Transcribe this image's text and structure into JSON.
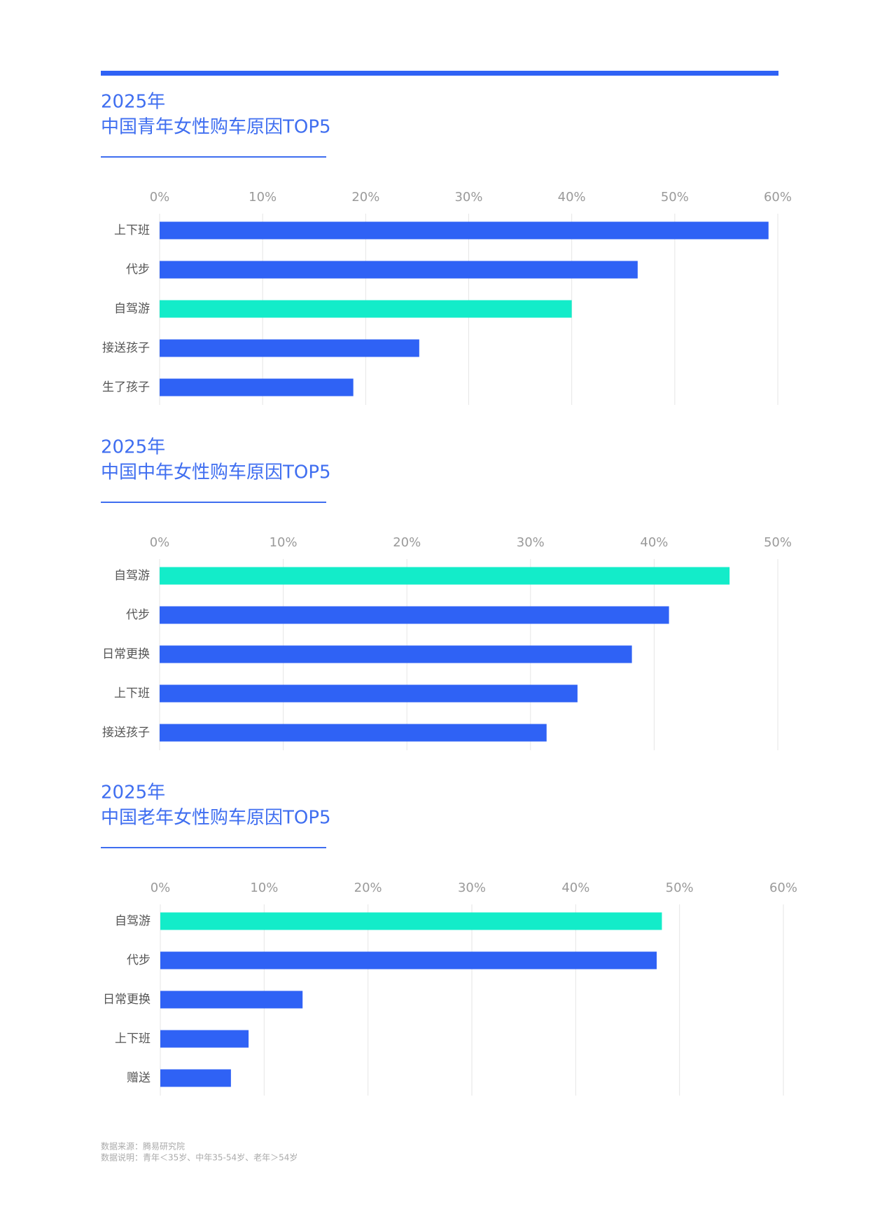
{
  "chart_data": [
    {
      "type": "bar",
      "orientation": "horizontal",
      "title": "2025年",
      "subtitle": "中国青年女性购车原因TOP5",
      "categories": [
        "上下班",
        "代步",
        "自驾游",
        "接送孩子",
        "生了孩子"
      ],
      "values": [
        59.1,
        46.4,
        40.0,
        25.2,
        18.8
      ],
      "colors": [
        "#2f62f5",
        "#2f62f5",
        "#13ecc9",
        "#2f62f5",
        "#2f62f5"
      ],
      "xlim": [
        0,
        60
      ],
      "xticks": [
        {
          "value": 0,
          "label": "0%"
        },
        {
          "value": 10,
          "label": "10%"
        },
        {
          "value": 20,
          "label": "20%"
        },
        {
          "value": 30,
          "label": "30%"
        },
        {
          "value": 40,
          "label": "40%"
        },
        {
          "value": 50,
          "label": "50%"
        },
        {
          "value": 60,
          "label": "60%"
        }
      ],
      "grid": true
    },
    {
      "type": "bar",
      "orientation": "horizontal",
      "title": "2025年",
      "subtitle": "中国中年女性购车原因TOP5",
      "categories": [
        "自驾游",
        "代步",
        "日常更换",
        "上下班",
        "接送孩子"
      ],
      "values": [
        46.1,
        41.2,
        38.2,
        33.8,
        31.3
      ],
      "colors": [
        "#13ecc9",
        "#2f62f5",
        "#2f62f5",
        "#2f62f5",
        "#2f62f5"
      ],
      "xlim": [
        0,
        50
      ],
      "xticks": [
        {
          "value": 0,
          "label": "0%"
        },
        {
          "value": 10,
          "label": "10%"
        },
        {
          "value": 20,
          "label": "20%"
        },
        {
          "value": 30,
          "label": "30%"
        },
        {
          "value": 40,
          "label": "40%"
        },
        {
          "value": 50,
          "label": "50%"
        }
      ],
      "grid": true
    },
    {
      "type": "bar",
      "orientation": "horizontal",
      "title": "2025年",
      "subtitle": "中国老年女性购车原因TOP5",
      "categories": [
        "自驾游",
        "代步",
        "日常更换",
        "上下班",
        "赠送"
      ],
      "values": [
        48.3,
        47.8,
        13.7,
        8.5,
        6.8
      ],
      "colors": [
        "#13ecc9",
        "#2f62f5",
        "#2f62f5",
        "#2f62f5",
        "#2f62f5"
      ],
      "xlim": [
        0,
        60
      ],
      "xticks": [
        {
          "value": 0,
          "label": "0%"
        },
        {
          "value": 10,
          "label": "10%"
        },
        {
          "value": 20,
          "label": "20%"
        },
        {
          "value": 30,
          "label": "30%"
        },
        {
          "value": 40,
          "label": "40%"
        },
        {
          "value": 50,
          "label": "50%"
        },
        {
          "value": 60,
          "label": "60%"
        }
      ],
      "grid": true
    }
  ],
  "footer": {
    "source": "数据来源：腾易研究院",
    "note": "数据说明：青年＜35岁、中年35-54岁、老年＞54岁"
  }
}
